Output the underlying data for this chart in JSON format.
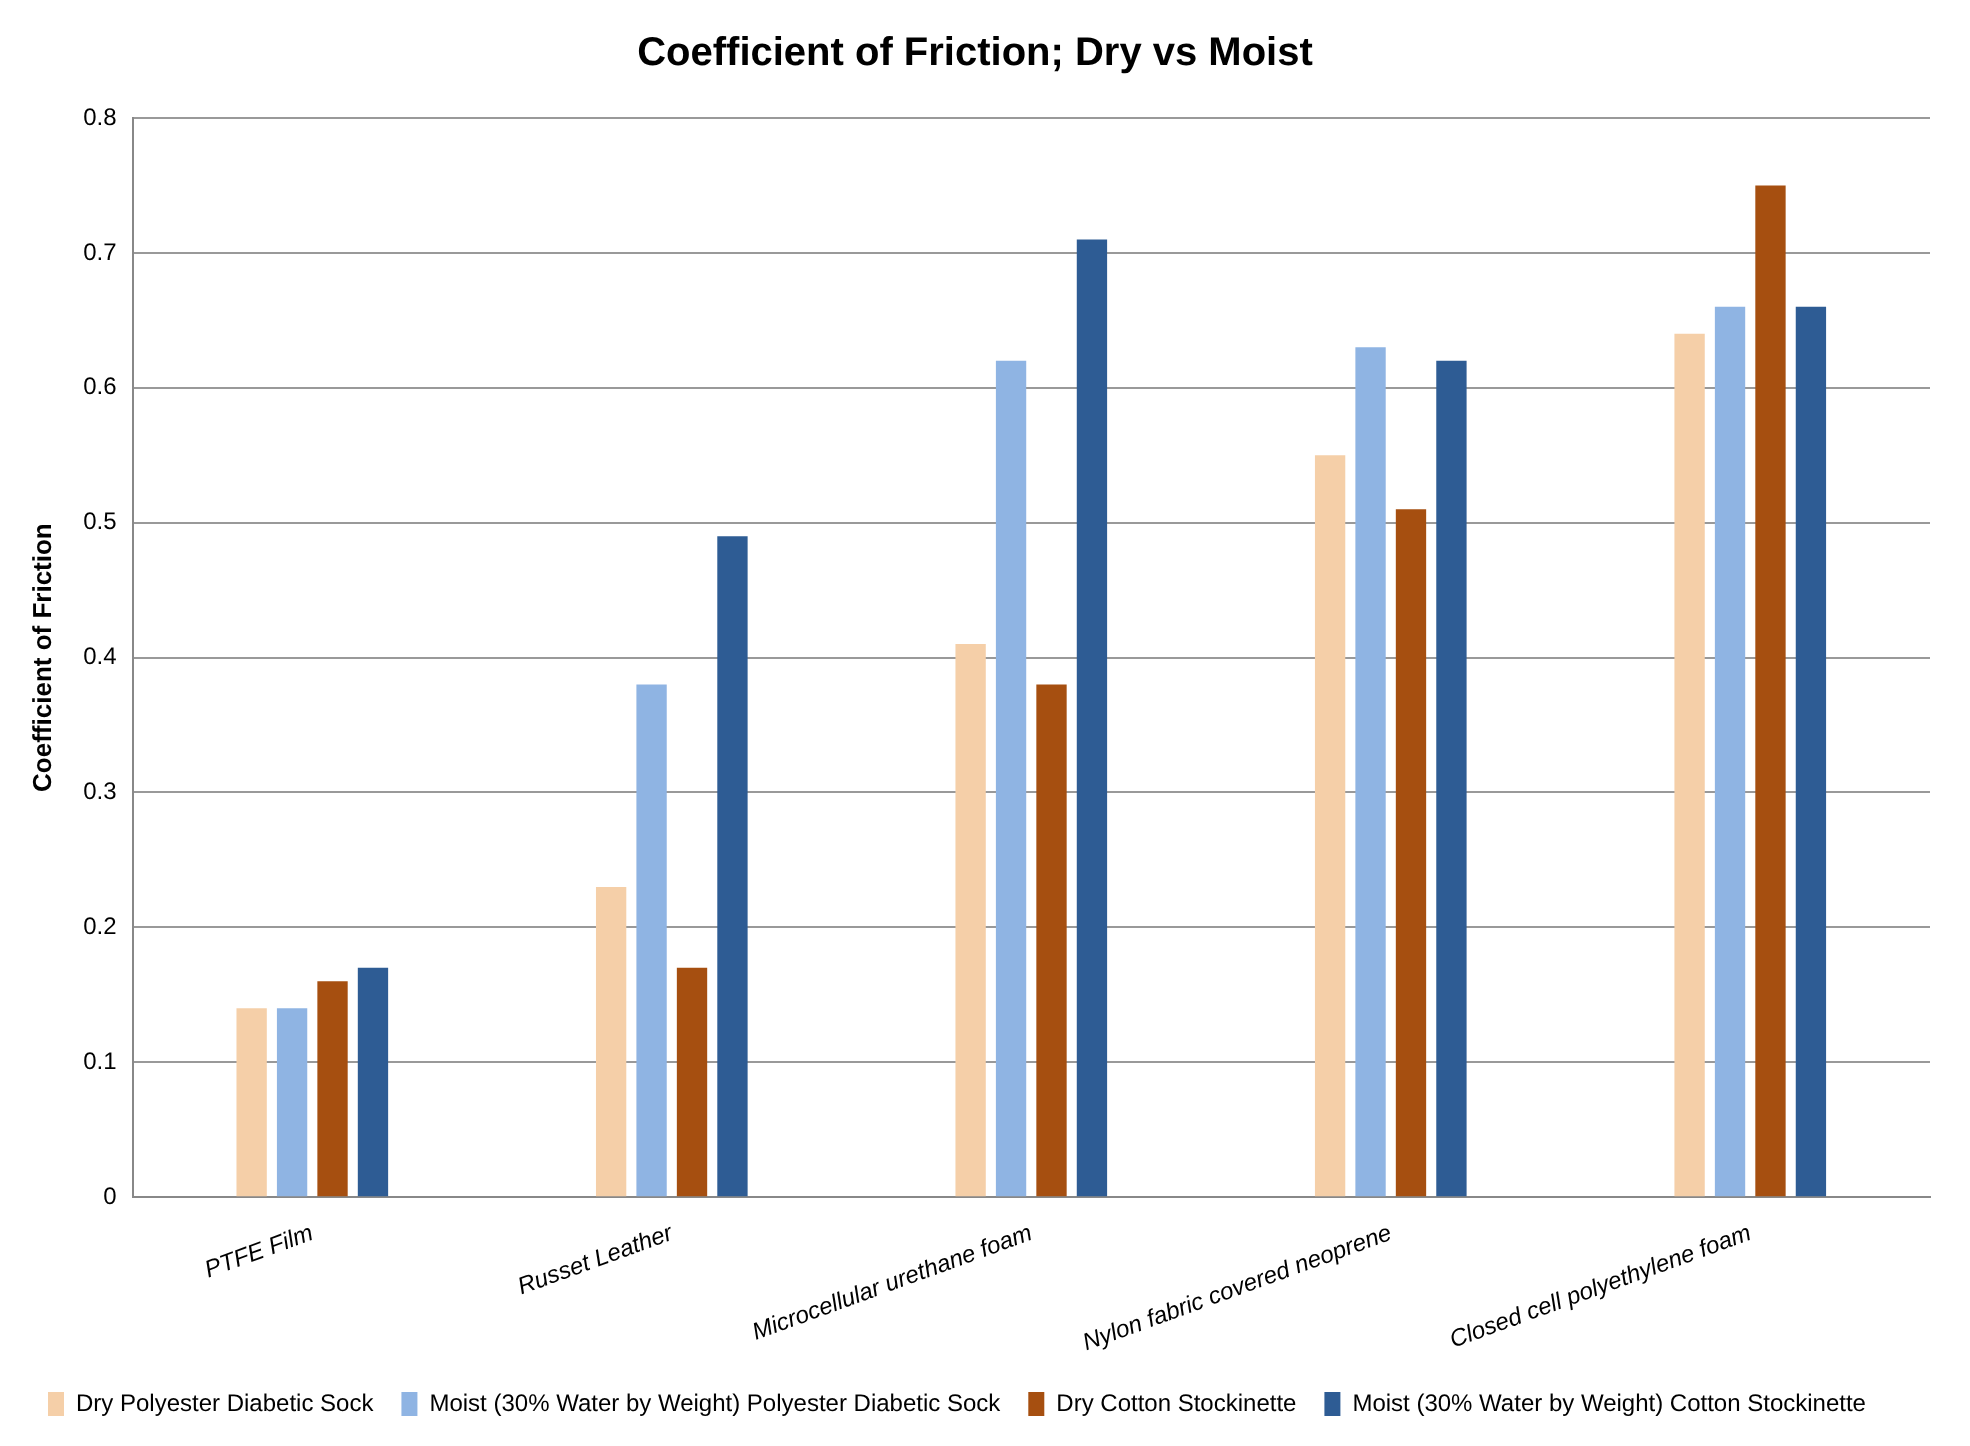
{
  "chart_data": {
    "type": "bar",
    "title": "Coefficient of Friction; Dry vs Moist",
    "ylabel": "Coefficient of Friction",
    "categories": [
      "PTFE Film",
      "Russet Leather",
      "Microcellular urethane foam",
      "Nylon fabric covered neoprene",
      "Closed cell polyethylene foam"
    ],
    "series": [
      {
        "name": "Dry Polyester Diabetic Sock",
        "color": "#f5cfa8",
        "values": [
          0.14,
          0.23,
          0.41,
          0.55,
          0.64
        ]
      },
      {
        "name": "Moist (30% Water by Weight) Polyester Diabetic Sock",
        "color": "#8fb4e3",
        "values": [
          0.14,
          0.38,
          0.62,
          0.63,
          0.66
        ]
      },
      {
        "name": "Dry Cotton Stockinette",
        "color": "#a64f10",
        "values": [
          0.16,
          0.17,
          0.38,
          0.51,
          0.75
        ]
      },
      {
        "name": "Moist (30% Water by Weight) Cotton Stockinette",
        "color": "#2e5c94",
        "values": [
          0.17,
          0.49,
          0.71,
          0.62,
          0.66
        ]
      }
    ],
    "ylim": [
      0,
      0.8
    ],
    "yticks": [
      0,
      0.1,
      0.2,
      0.3,
      0.4,
      0.5,
      0.6,
      0.7,
      0.8
    ],
    "grid": "y",
    "legend": "bottom"
  }
}
